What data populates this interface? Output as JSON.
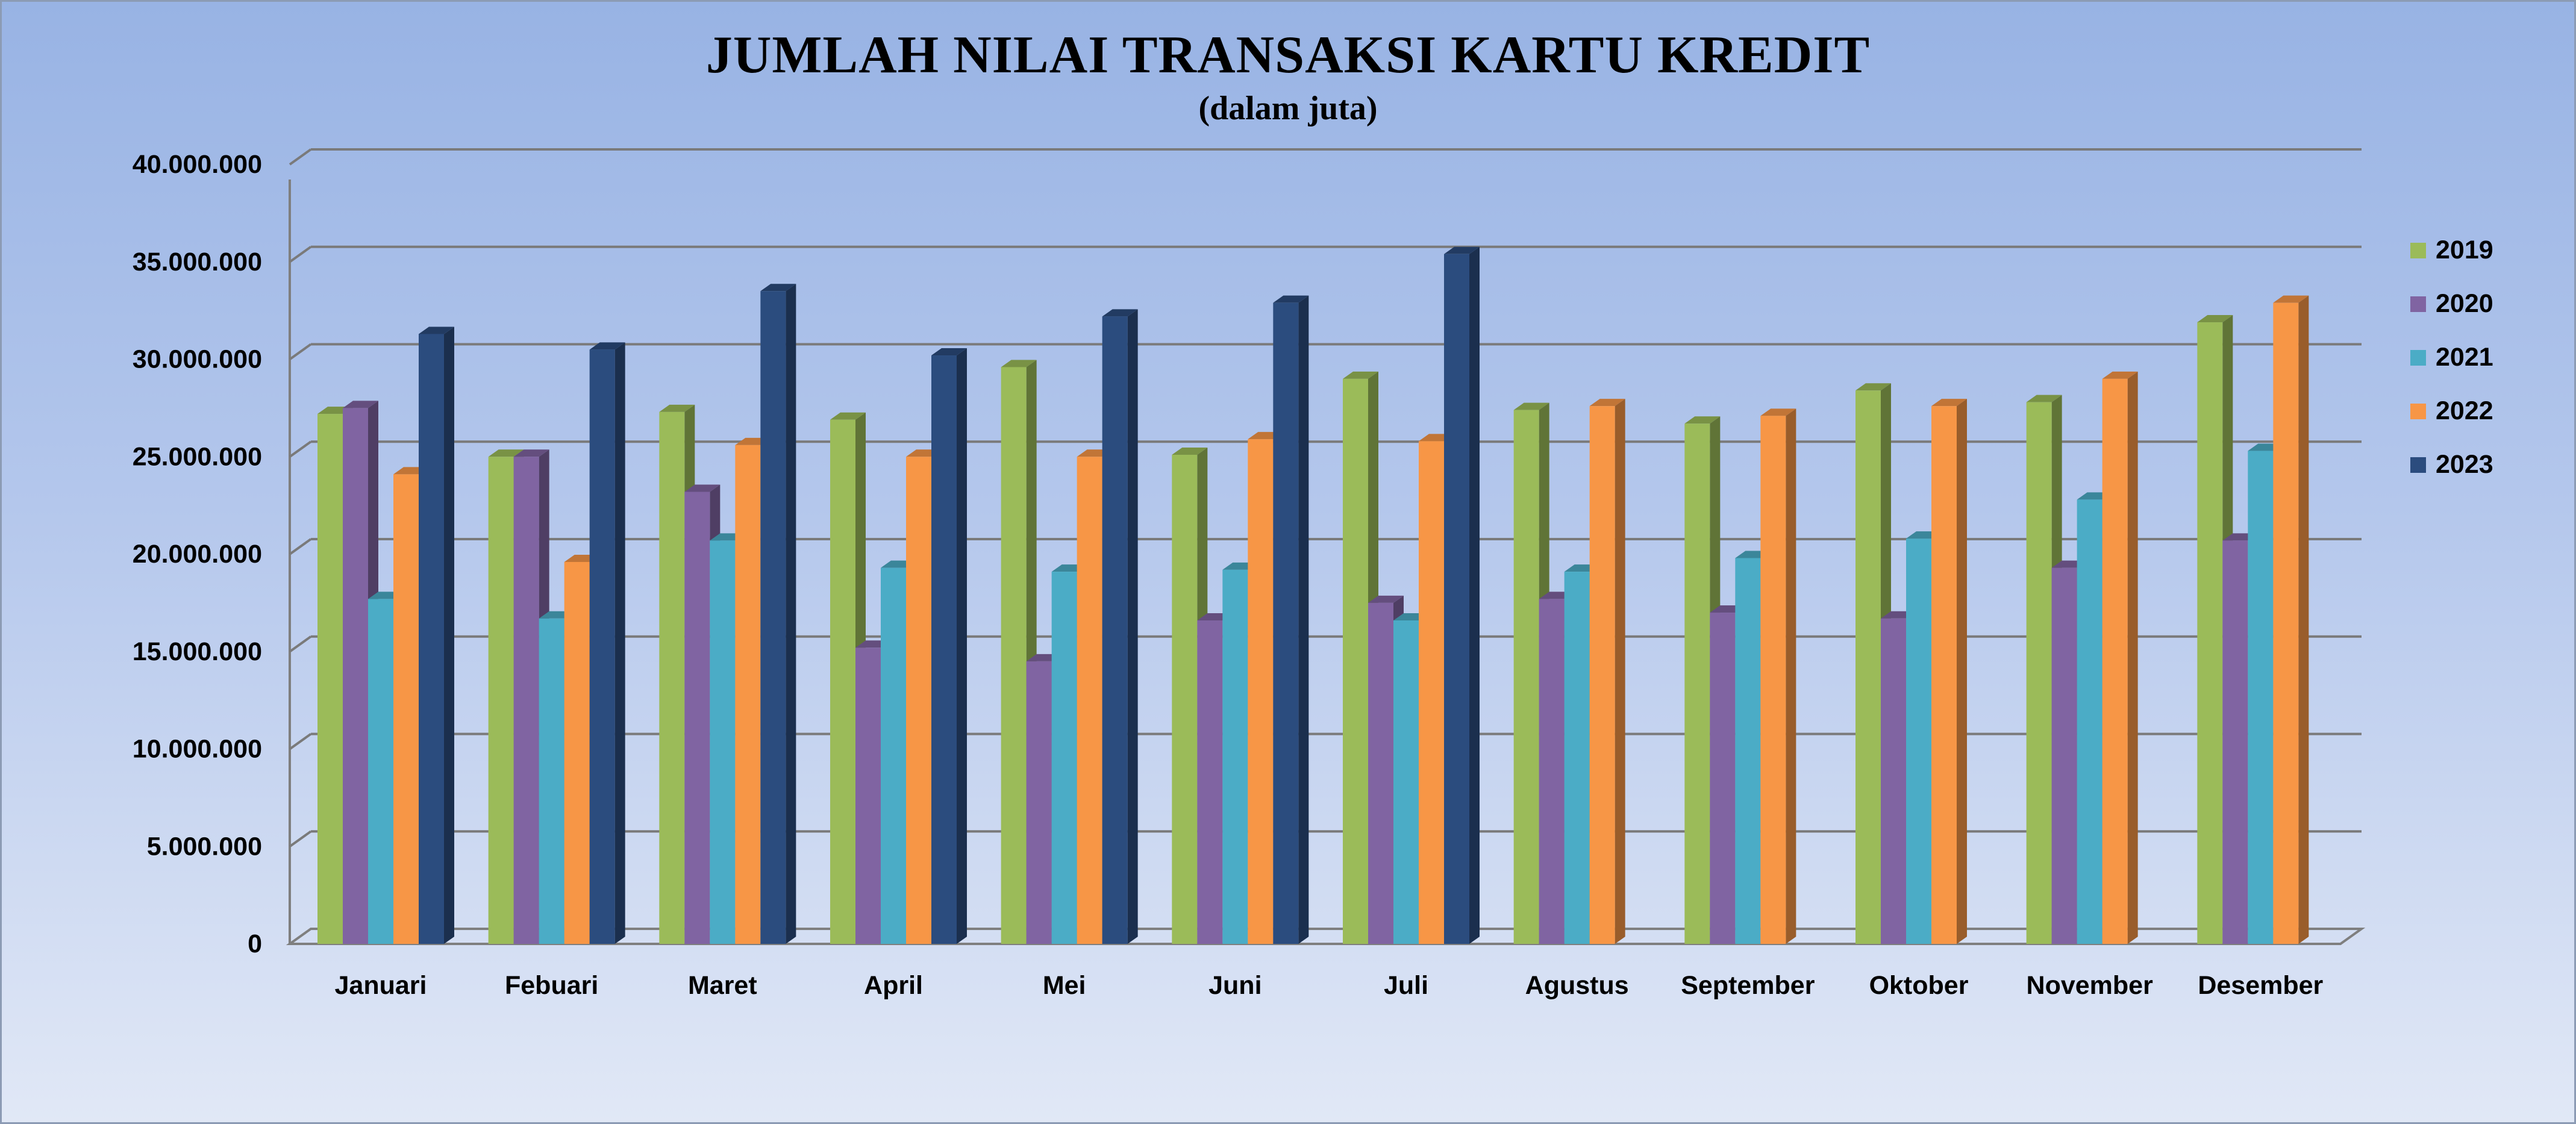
{
  "chart_data": {
    "type": "bar",
    "title": "JUMLAH NILAI TRANSAKSI KARTU KREDIT",
    "subtitle": "(dalam juta)",
    "categories": [
      "Januari",
      "Febuari",
      "Maret",
      "April",
      "Mei",
      "Juni",
      "Juli",
      "Agustus",
      "September",
      "Oktober",
      "November",
      "Desember"
    ],
    "y_ticks": [
      "0",
      "5.000.000",
      "10.000.000",
      "15.000.000",
      "20.000.000",
      "25.000.000",
      "30.000.000",
      "35.000.000",
      "40.000.000"
    ],
    "ylim": [
      0,
      40000000
    ],
    "grid": true,
    "legend_position": "right",
    "series": [
      {
        "name": "2019",
        "color": "#9bbb59",
        "values": [
          27200000,
          25000000,
          27300000,
          26900000,
          29600000,
          25100000,
          29000000,
          27400000,
          26700000,
          28400000,
          27800000,
          31900000
        ]
      },
      {
        "name": "2020",
        "color": "#8064a2",
        "values": [
          27500000,
          25000000,
          23200000,
          15200000,
          14500000,
          16600000,
          17500000,
          17700000,
          17000000,
          16700000,
          19300000,
          20700000
        ]
      },
      {
        "name": "2021",
        "color": "#4bacc6",
        "values": [
          17700000,
          16700000,
          20700000,
          19300000,
          19100000,
          19200000,
          16600000,
          19100000,
          19800000,
          20800000,
          22800000,
          25300000
        ]
      },
      {
        "name": "2022",
        "color": "#f79646",
        "values": [
          24100000,
          19600000,
          25600000,
          25000000,
          25000000,
          25900000,
          25800000,
          27600000,
          27100000,
          27600000,
          29000000,
          32900000
        ]
      },
      {
        "name": "2023",
        "color": "#2b4c7e",
        "values": [
          31300000,
          30500000,
          33500000,
          30200000,
          32200000,
          32900000,
          35400000,
          null,
          null,
          null,
          null,
          null
        ]
      }
    ]
  }
}
